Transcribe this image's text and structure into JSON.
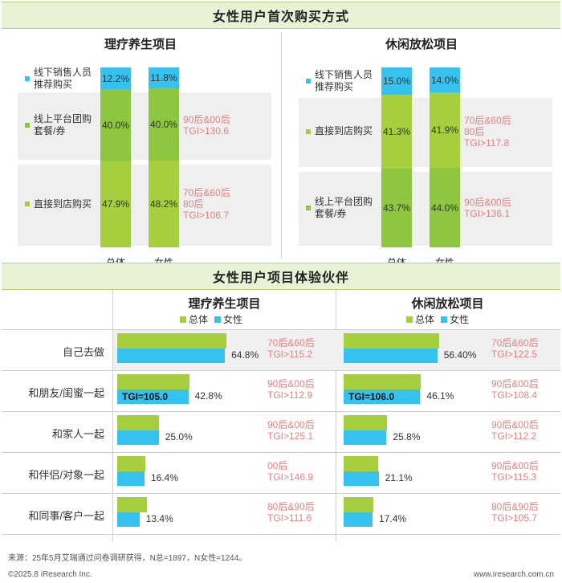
{
  "colors": {
    "green": "#a5cf3e",
    "dgreen": "#8ec63f",
    "blue": "#36c2ee",
    "tgi": "#e8807f"
  },
  "top": {
    "header": "女性用户首次购买方式",
    "panels": [
      {
        "title": "理疗养生项目",
        "categories": [
          "总体",
          "女性"
        ],
        "segments": [
          {
            "label_lines": [
              "线下销售人员",
              "推荐购买"
            ],
            "color": "#36c2ee",
            "values": [
              12.2,
              11.8
            ],
            "value_labels": [
              "12.2%",
              "11.8%"
            ],
            "tgi": []
          },
          {
            "label_lines": [
              "线上平台团购",
              "套餐/券"
            ],
            "color": "#8ec63f",
            "values": [
              40.0,
              40.0
            ],
            "value_labels": [
              "40.0%",
              "40.0%"
            ],
            "tgi": [
              "90后&00后",
              "TGI>130.6"
            ]
          },
          {
            "label_lines": [
              "直接到店购买"
            ],
            "color": "#a5cf3e",
            "values": [
              47.9,
              48.2
            ],
            "value_labels": [
              "47.9%",
              "48.2%"
            ],
            "tgi": [
              "70后&60后",
              "80后",
              "TGI>106.7"
            ]
          }
        ]
      },
      {
        "title": "休闲放松项目",
        "categories": [
          "总体",
          "女性"
        ],
        "segments": [
          {
            "label_lines": [
              "线下销售人员",
              "推荐购买"
            ],
            "color": "#36c2ee",
            "values": [
              15.0,
              14.0
            ],
            "value_labels": [
              "15.0%",
              "14.0%"
            ],
            "tgi": []
          },
          {
            "label_lines": [
              "直接到店购买"
            ],
            "color": "#a5cf3e",
            "values": [
              41.3,
              41.9
            ],
            "value_labels": [
              "41.3%",
              "41.9%"
            ],
            "tgi": [
              "70后&60后",
              "80后",
              "TGI>117.8"
            ]
          },
          {
            "label_lines": [
              "线上平台团购",
              "套餐/券"
            ],
            "color": "#8ec63f",
            "values": [
              43.7,
              44.0
            ],
            "value_labels": [
              "43.7%",
              "44.0%"
            ],
            "tgi": [
              "90后&00后",
              "TGI>136.1"
            ]
          }
        ]
      }
    ]
  },
  "bottom": {
    "header": "女性用户项目体验伙伴",
    "legend": [
      "总体",
      "女性"
    ],
    "rows": [
      "自己去做",
      "和朋友/闺蜜一起",
      "和家人一起",
      "和伴侣/对象一起",
      "和同事/客户一起"
    ],
    "panels": [
      {
        "title": "理疗养生项目",
        "overall": [
          65.5,
          43.5,
          25.0,
          17.0,
          18.0
        ],
        "female": [
          64.8,
          42.8,
          25.0,
          16.4,
          13.4
        ],
        "female_labels": [
          "64.8%",
          "42.8%",
          "25.0%",
          "16.4%",
          "13.4%"
        ],
        "inbar": [
          "",
          "TGI=105.0",
          "",
          "",
          ""
        ],
        "tgi": [
          [
            "70后&60后",
            "TGI>115.2"
          ],
          [
            "90后&00后",
            "TGI>112.9"
          ],
          [
            "90后&00后",
            "TGI>125.1"
          ],
          [
            "00后",
            "TGI>146.9"
          ],
          [
            "80后&90后",
            "TGI>111.6"
          ]
        ]
      },
      {
        "title": "休闲放松项目",
        "overall": [
          57.5,
          46.5,
          26.0,
          21.0,
          18.0
        ],
        "female": [
          56.4,
          46.1,
          25.8,
          21.1,
          17.4
        ],
        "female_labels": [
          "56.40%",
          "46.1%",
          "25.8%",
          "21.1%",
          "17.4%"
        ],
        "inbar": [
          "",
          "TGI=106.0",
          "",
          "",
          ""
        ],
        "tgi": [
          [
            "70后&60后",
            "TGI>122.5"
          ],
          [
            "90后&00后",
            "TGI>108.4"
          ],
          [
            "90后&00后",
            "TGI>112.2"
          ],
          [
            "90后&00后",
            "TGI>115.3"
          ],
          [
            "80后&90后",
            "TGI>105.7"
          ]
        ]
      }
    ]
  },
  "footer": {
    "source": "来源：25年5月艾瑞通过问卷调研获得，N总=1897，N女性=1244。",
    "copyright": "©2025.8 iResearch Inc.",
    "site": "www.iresearch.com.cn"
  },
  "chart_data": [
    {
      "type": "bar",
      "title": "理疗养生项目",
      "stacked": true,
      "categories": [
        "总体",
        "女性"
      ],
      "series": [
        {
          "name": "线下销售人员推荐购买",
          "values": [
            12.2,
            11.8
          ]
        },
        {
          "name": "线上平台团购套餐/券",
          "values": [
            40.0,
            40.0
          ]
        },
        {
          "name": "直接到店购买",
          "values": [
            47.9,
            48.2
          ]
        }
      ]
    },
    {
      "type": "bar",
      "title": "休闲放松项目",
      "stacked": true,
      "categories": [
        "总体",
        "女性"
      ],
      "series": [
        {
          "name": "线下销售人员推荐购买",
          "values": [
            15.0,
            14.0
          ]
        },
        {
          "name": "直接到店购买",
          "values": [
            41.3,
            41.9
          ]
        },
        {
          "name": "线上平台团购套餐/券",
          "values": [
            43.7,
            44.0
          ]
        }
      ]
    },
    {
      "type": "bar",
      "orientation": "horizontal",
      "title": "理疗养生项目",
      "categories": [
        "自己去做",
        "和朋友/闺蜜一起",
        "和家人一起",
        "和伴侣/对象一起",
        "和同事/客户一起"
      ],
      "series": [
        {
          "name": "总体",
          "values": [
            65.5,
            43.5,
            25.0,
            17.0,
            18.0
          ]
        },
        {
          "name": "女性",
          "values": [
            64.8,
            42.8,
            25.0,
            16.4,
            13.4
          ]
        }
      ]
    },
    {
      "type": "bar",
      "orientation": "horizontal",
      "title": "休闲放松项目",
      "categories": [
        "自己去做",
        "和朋友/闺蜜一起",
        "和家人一起",
        "和伴侣/对象一起",
        "和同事/客户一起"
      ],
      "series": [
        {
          "name": "总体",
          "values": [
            57.5,
            46.5,
            26.0,
            21.0,
            18.0
          ]
        },
        {
          "name": "女性",
          "values": [
            56.4,
            46.1,
            25.8,
            21.1,
            17.4
          ]
        }
      ]
    }
  ]
}
